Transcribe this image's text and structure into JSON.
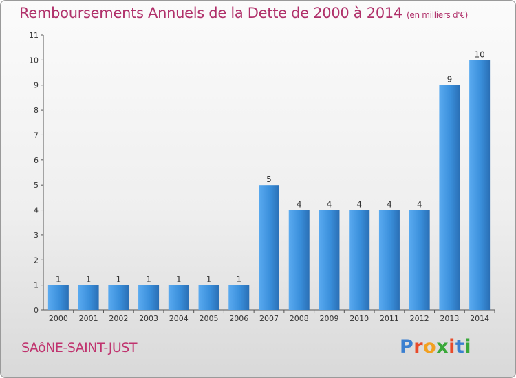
{
  "header": {
    "title": "Remboursements Annuels de la Dette de 2000 à 2014",
    "unit": "(en milliers d'€)"
  },
  "footer": {
    "commune": "SAôNE-SAINT-JUST",
    "logo_letters": [
      {
        "char": "P",
        "color": "#3a7fd0"
      },
      {
        "char": "r",
        "color": "#e84a2a"
      },
      {
        "char": "o",
        "color": "#f2a020"
      },
      {
        "char": "x",
        "color": "#3aa83a"
      },
      {
        "char": "i",
        "color": "#e84a2a"
      },
      {
        "char": "t",
        "color": "#3a7fd0"
      },
      {
        "char": "i",
        "color": "#3aa83a"
      }
    ]
  },
  "chart_data": {
    "type": "bar",
    "title": "Remboursements Annuels de la Dette de 2000 à 2014",
    "subtitle": "(en milliers d'€)",
    "categories": [
      "2000",
      "2001",
      "2002",
      "2003",
      "2004",
      "2005",
      "2006",
      "2007",
      "2008",
      "2009",
      "2010",
      "2011",
      "2012",
      "2013",
      "2014"
    ],
    "values": [
      1,
      1,
      1,
      1,
      1,
      1,
      1,
      5,
      4,
      4,
      4,
      4,
      4,
      9,
      10
    ],
    "ylim": [
      0,
      11
    ],
    "yticks": [
      0,
      1,
      2,
      3,
      4,
      5,
      6,
      7,
      8,
      9,
      10,
      11
    ],
    "xlabel": "",
    "ylabel": "",
    "grid": false,
    "legend": "none",
    "bar_color": "#3a8fdb",
    "bar_color_dark": "#2a6fb5"
  }
}
